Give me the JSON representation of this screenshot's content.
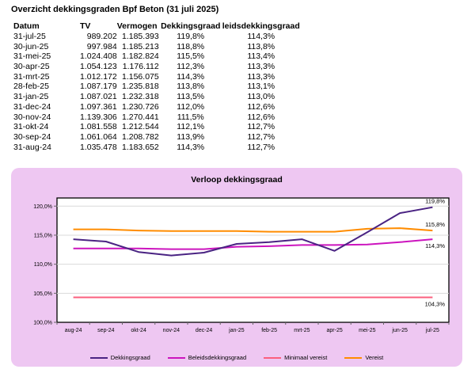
{
  "page": {
    "title": "Overzicht dekkingsgraden Bpf Beton (31 juli 2025)"
  },
  "table": {
    "headers": [
      "Datum",
      "TV",
      "Vermogen",
      "Dekkingsgraad",
      "leidsdekkingsgraad"
    ],
    "rows": [
      [
        "31-jul-25",
        "989.202",
        "1.185.393",
        "119,8%",
        "114,3%"
      ],
      [
        "30-jun-25",
        "997.984",
        "1.185.213",
        "118,8%",
        "113,8%"
      ],
      [
        "31-mei-25",
        "1.024.408",
        "1.182.824",
        "115,5%",
        "113,4%"
      ],
      [
        "30-apr-25",
        "1.054.123",
        "1.176.112",
        "112,3%",
        "113,3%"
      ],
      [
        "31-mrt-25",
        "1.012.172",
        "1.156.075",
        "114,3%",
        "113,3%"
      ],
      [
        "28-feb-25",
        "1.087.179",
        "1.235.818",
        "113,8%",
        "113,1%"
      ],
      [
        "31-jan-25",
        "1.087.021",
        "1.232.318",
        "113,5%",
        "113,0%"
      ],
      [
        "31-dec-24",
        "1.097.361",
        "1.230.726",
        "112,0%",
        "112,6%"
      ],
      [
        "30-nov-24",
        "1.139.306",
        "1.270.441",
        "111,5%",
        "112,6%"
      ],
      [
        "31-okt-24",
        "1.081.558",
        "1.212.544",
        "112,1%",
        "112,7%"
      ],
      [
        "30-sep-24",
        "1.061.064",
        "1.208.782",
        "113,9%",
        "112,7%"
      ],
      [
        "31-aug-24",
        "1.035.478",
        "1.183.652",
        "114,3%",
        "112,7%"
      ]
    ]
  },
  "chart_data": {
    "type": "line",
    "title": "Verloop dekkingsgraad",
    "categories": [
      "aug-24",
      "sep-24",
      "okt-24",
      "nov-24",
      "dec-24",
      "jan-25",
      "feb-25",
      "mrt-25",
      "apr-25",
      "mei-25",
      "jun-25",
      "jul-25"
    ],
    "series": [
      {
        "name": "Dekkingsgraad",
        "color": "#4A2383",
        "values": [
          114.3,
          113.9,
          112.1,
          111.5,
          112.0,
          113.5,
          113.8,
          114.3,
          112.3,
          115.5,
          118.8,
          119.8
        ],
        "end_label": "119,8%",
        "end_label_side": "above"
      },
      {
        "name": "Beleidsdekkingsgraad",
        "color": "#CC14BE",
        "values": [
          112.7,
          112.7,
          112.7,
          112.6,
          112.6,
          113.0,
          113.1,
          113.3,
          113.3,
          113.4,
          113.8,
          114.3
        ],
        "end_label": "114,3%",
        "end_label_side": "below"
      },
      {
        "name": "Minimaal vereist",
        "color": "#FB5F7E",
        "values": [
          104.3,
          104.3,
          104.3,
          104.3,
          104.3,
          104.3,
          104.3,
          104.3,
          104.3,
          104.3,
          104.3,
          104.3
        ],
        "end_label": "104,3%",
        "end_label_side": "below"
      },
      {
        "name": "Vereist",
        "color": "#FF8C00",
        "values": [
          116.0,
          116.0,
          115.8,
          115.7,
          115.7,
          115.7,
          115.6,
          115.6,
          115.6,
          116.1,
          116.2,
          115.8
        ],
        "end_label": "115,8%",
        "end_label_side": "above"
      }
    ],
    "y_ticks": [
      {
        "value": 100,
        "label": "100,0%"
      },
      {
        "value": 105,
        "label": "105,0%"
      },
      {
        "value": 110,
        "label": "110,0%"
      },
      {
        "value": 115,
        "label": "115,0%"
      },
      {
        "value": 120,
        "label": "120,0%"
      }
    ],
    "ylim": [
      100,
      121.4
    ],
    "grid": true,
    "legend_position": "bottom"
  },
  "colors": {
    "panel_bg": "#EEC7F2",
    "plot_bg": "#FFFFFF",
    "plot_border": "#000000",
    "gridline": "#D9D9D9",
    "tick": "#666666",
    "text": "#000000"
  }
}
